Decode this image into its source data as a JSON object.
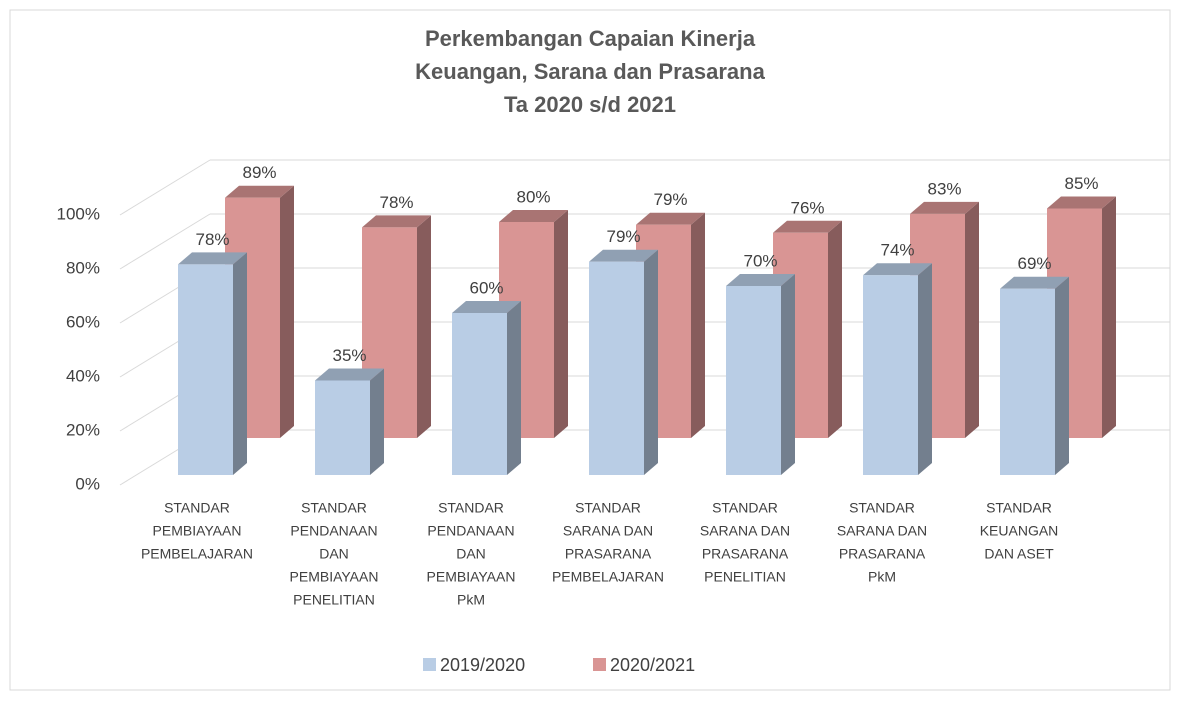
{
  "chart_data": {
    "type": "bar3d",
    "title": [
      "Perkembangan Capaian Kinerja",
      "Keuangan, Sarana dan Prasarana",
      "Ta 2020 s/d 2021"
    ],
    "categories": [
      [
        "STANDAR",
        "PEMBIAYAAN",
        "PEMBELAJARAN"
      ],
      [
        "STANDAR",
        "PENDANAAN",
        "DAN",
        "PEMBIAYAAN",
        "PENELITIAN"
      ],
      [
        "STANDAR",
        "PENDANAAN",
        "DAN",
        "PEMBIAYAAN",
        "PkM"
      ],
      [
        "STANDAR",
        "SARANA DAN",
        "PRASARANA",
        "PEMBELAJARAN"
      ],
      [
        "STANDAR",
        "SARANA DAN",
        "PRASARANA",
        "PENELITIAN"
      ],
      [
        "STANDAR",
        "SARANA DAN",
        "PRASARANA",
        "PkM"
      ],
      [
        "STANDAR",
        "KEUANGAN",
        "DAN ASET"
      ]
    ],
    "series": [
      {
        "name": "2019/2020",
        "color": "#b9cde5",
        "values": [
          78,
          35,
          60,
          79,
          70,
          74,
          69
        ],
        "value_labels": [
          "78%",
          "35%",
          "60%",
          "79%",
          "70%",
          "74%",
          "69%"
        ]
      },
      {
        "name": "2020/2021",
        "color": "#d99594",
        "values": [
          89,
          78,
          80,
          79,
          76,
          83,
          85
        ],
        "value_labels": [
          "89%",
          "78%",
          "80%",
          "79%",
          "76%",
          "83%",
          "85%"
        ]
      }
    ],
    "ylim": [
      0,
      100
    ],
    "yticks": [
      {
        "value": 0,
        "label": "0%"
      },
      {
        "value": 20,
        "label": "20%"
      },
      {
        "value": 40,
        "label": "40%"
      },
      {
        "value": 60,
        "label": "60%"
      },
      {
        "value": 80,
        "label": "80%"
      },
      {
        "value": 100,
        "label": "100%"
      }
    ],
    "grid": true,
    "legend": "bottom"
  }
}
